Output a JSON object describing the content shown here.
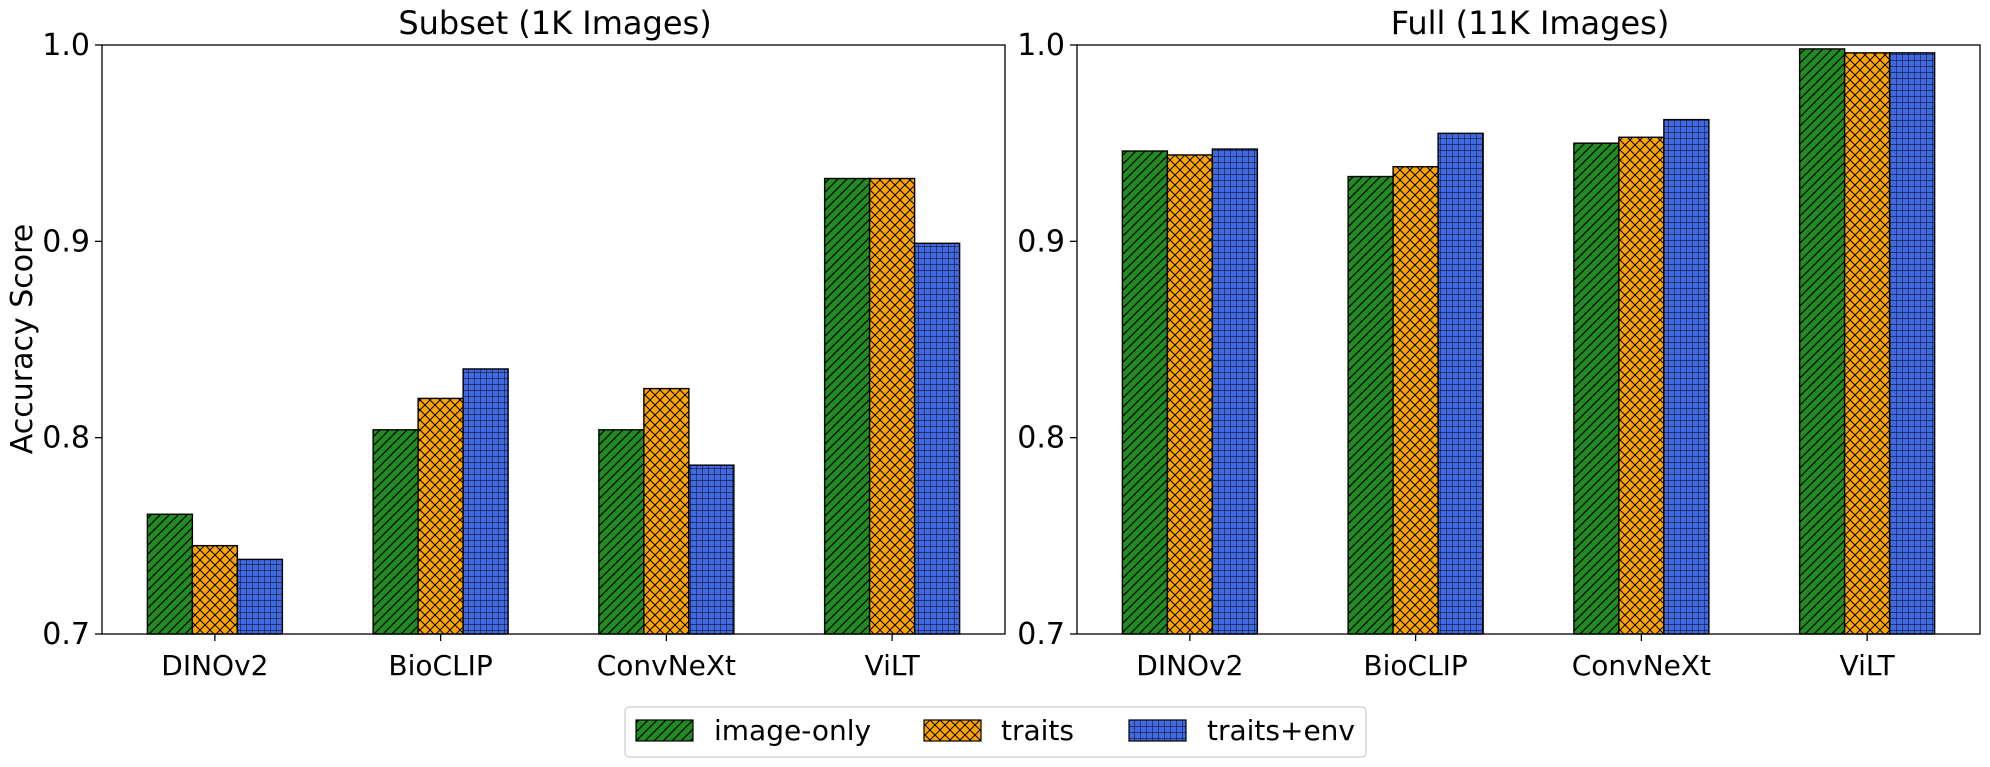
{
  "chart_data": [
    {
      "type": "bar",
      "title": "Subset (1K Images)",
      "ylabel": "Accuracy Score",
      "xlabel": "",
      "ylim": [
        0.7,
        1.0
      ],
      "yticks": [
        "0.7",
        "0.8",
        "0.9",
        "1.0"
      ],
      "categories": [
        "DINOv2",
        "BioCLIP",
        "ConvNeXt",
        "ViLT"
      ],
      "series": [
        {
          "name": "image-only",
          "values": [
            0.761,
            0.804,
            0.804,
            0.932
          ]
        },
        {
          "name": "traits",
          "values": [
            0.745,
            0.82,
            0.825,
            0.932
          ]
        },
        {
          "name": "traits+env",
          "values": [
            0.738,
            0.835,
            0.786,
            0.899
          ]
        }
      ]
    },
    {
      "type": "bar",
      "title": "Full (11K Images)",
      "ylabel": "",
      "xlabel": "",
      "ylim": [
        0.7,
        1.0
      ],
      "yticks": [
        "0.7",
        "0.8",
        "0.9",
        "1.0"
      ],
      "categories": [
        "DINOv2",
        "BioCLIP",
        "ConvNeXt",
        "ViLT"
      ],
      "series": [
        {
          "name": "image-only",
          "values": [
            0.946,
            0.933,
            0.95,
            0.998
          ]
        },
        {
          "name": "traits",
          "values": [
            0.944,
            0.938,
            0.953,
            0.996
          ]
        },
        {
          "name": "traits+env",
          "values": [
            0.947,
            0.955,
            0.962,
            0.996
          ]
        }
      ]
    }
  ],
  "legend": {
    "placement": "bottom-center",
    "items": [
      {
        "label": "image-only",
        "color": "#228b22",
        "hatch": "diagonal"
      },
      {
        "label": "traits",
        "color": "#ffa500",
        "hatch": "crosshatch"
      },
      {
        "label": "traits+env",
        "color": "#4169e1",
        "hatch": "grid"
      }
    ]
  }
}
